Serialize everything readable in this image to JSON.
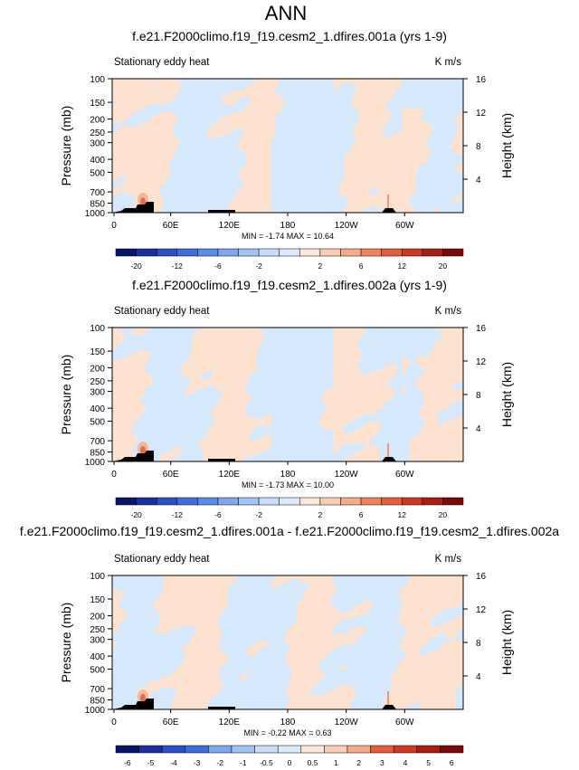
{
  "title": "ANN",
  "chart_data": [
    {
      "type": "heatmap",
      "title": "f.e21.F2000climo.f19_f19.cesm2_1.dfires.001a (yrs 1-9)",
      "subtitle_left": "Stationary eddy heat",
      "units": "K m/s",
      "xlabel": "",
      "ylabel": "Pressure (mb)",
      "ylabel_right": "Height (km)",
      "x_ticks": [
        "0",
        "60E",
        "120E",
        "180",
        "120W",
        "60W"
      ],
      "y_ticks": [
        "100",
        "150",
        "200",
        "250",
        "300",
        "400",
        "500",
        "700",
        "850",
        "1000"
      ],
      "y_right_ticks": [
        "4",
        "8",
        "12",
        "16"
      ],
      "y_scale": "log-pressure",
      "stats": "MIN = -1.74  MAX = 10.64",
      "colorbar_labels": [
        "-20",
        "-12",
        "-6",
        "-2",
        "2",
        "6",
        "12",
        "20"
      ],
      "colorbar_levels": [
        -20,
        -16,
        -12,
        -8,
        -6,
        -4,
        -2,
        -1,
        0,
        1,
        2,
        4,
        6,
        8,
        12,
        16,
        20
      ],
      "min": -1.74,
      "max": 10.64
    },
    {
      "type": "heatmap",
      "title": "f.e21.F2000climo.f19_f19.cesm2_1.dfires.002a (yrs 1-9)",
      "subtitle_left": "Stationary eddy heat",
      "units": "K m/s",
      "xlabel": "",
      "ylabel": "Pressure (mb)",
      "ylabel_right": "Height (km)",
      "x_ticks": [
        "0",
        "60E",
        "120E",
        "180",
        "120W",
        "60W"
      ],
      "y_ticks": [
        "100",
        "150",
        "200",
        "250",
        "300",
        "400",
        "500",
        "700",
        "850",
        "1000"
      ],
      "y_right_ticks": [
        "4",
        "8",
        "12",
        "16"
      ],
      "y_scale": "log-pressure",
      "stats": "MIN = -1.73  MAX = 10.00",
      "colorbar_labels": [
        "-20",
        "-12",
        "-6",
        "-2",
        "2",
        "6",
        "12",
        "20"
      ],
      "colorbar_levels": [
        -20,
        -16,
        -12,
        -8,
        -6,
        -4,
        -2,
        -1,
        0,
        1,
        2,
        4,
        6,
        8,
        12,
        16,
        20
      ],
      "min": -1.73,
      "max": 10.0
    },
    {
      "type": "heatmap",
      "title": "f.e21.F2000climo.f19_f19.cesm2_1.dfires.001a - f.e21.F2000climo.f19_f19.cesm2_1.dfires.002a",
      "subtitle_left": "Stationary eddy heat",
      "units": "K m/s",
      "xlabel": "",
      "ylabel": "Pressure (mb)",
      "ylabel_right": "Height (km)",
      "x_ticks": [
        "0",
        "60E",
        "120E",
        "180",
        "120W",
        "60W"
      ],
      "y_ticks": [
        "100",
        "150",
        "200",
        "250",
        "300",
        "400",
        "500",
        "700",
        "850",
        "1000"
      ],
      "y_right_ticks": [
        "4",
        "8",
        "12",
        "16"
      ],
      "y_scale": "log-pressure",
      "stats": "MIN = -0.22  MAX = 0.63",
      "colorbar_labels": [
        "-6",
        "-5",
        "-4",
        "-3",
        "-2",
        "-1",
        "-0.5",
        "0",
        "0.5",
        "1",
        "2",
        "3",
        "4",
        "5",
        "6"
      ],
      "colorbar_levels": [
        -6,
        -5,
        -4,
        -3,
        -2,
        -1,
        -0.5,
        0,
        0.5,
        1,
        2,
        3,
        4,
        5,
        6
      ],
      "min": -0.22,
      "max": 0.63
    }
  ],
  "colors": {
    "negative_small": "#d6e8fb",
    "positive_small": "#fde3cf",
    "terrain": "#000000",
    "colorbar": [
      "#08146b",
      "#1c2f9e",
      "#2d4fc4",
      "#3f6ddb",
      "#5b8ae8",
      "#7ea7f0",
      "#a3c3f6",
      "#c9dcfa",
      "#ddeafc",
      "#fde8dc",
      "#fbcdb6",
      "#f6aa8a",
      "#ef8360",
      "#e35d3c",
      "#cc3922",
      "#a81e14",
      "#7a0a0a"
    ]
  }
}
